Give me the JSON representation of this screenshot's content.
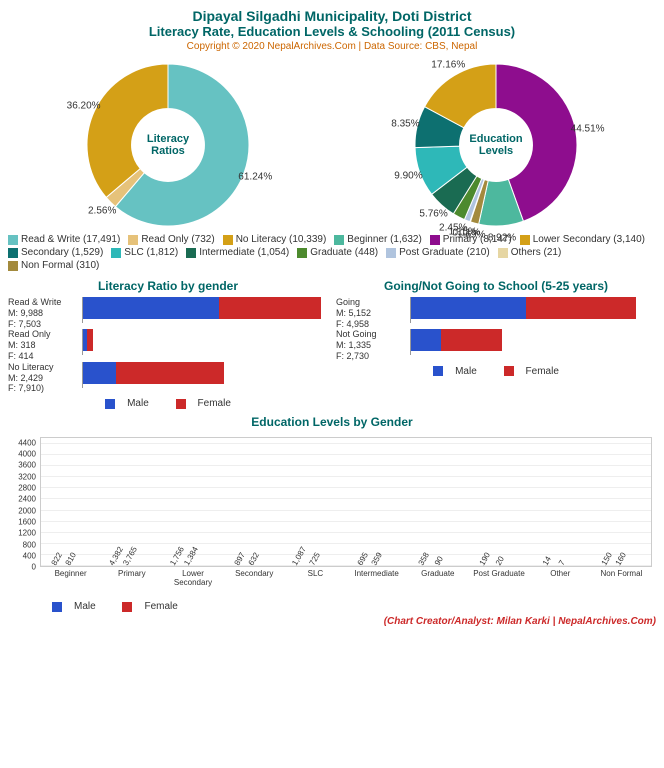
{
  "header": {
    "title1": "Dipayal Silgadhi Municipality, Doti District",
    "title2": "Literacy Rate, Education Levels & Schooling (2011 Census)",
    "copyright": "Copyright © 2020 NepalArchives.Com | Data Source: CBS, Nepal"
  },
  "colors": {
    "male": "#2952cc",
    "female": "#cc2929",
    "title": "#006666"
  },
  "donut_literacy": {
    "center_label": "Literacy\nRatios",
    "slices": [
      {
        "label": "Read & Write",
        "count": 17491,
        "pct": 61.24,
        "color": "#66c2c2"
      },
      {
        "label": "Read Only",
        "count": 732,
        "pct": 2.56,
        "color": "#e6c27a"
      },
      {
        "label": "No Literacy",
        "count": 10339,
        "pct": 36.2,
        "color": "#d4a017"
      }
    ],
    "size": 170,
    "inner_radius_ratio": 0.45
  },
  "donut_edu": {
    "center_label": "Education\nLevels",
    "slices": [
      {
        "label": "Primary",
        "count": 8147,
        "pct": 44.51,
        "color": "#8e0d8e"
      },
      {
        "label": "Beginner",
        "count": 1632,
        "pct": 8.92,
        "color": "#4db89e"
      },
      {
        "label": "Non Formal",
        "count": 310,
        "pct": 1.69,
        "color": "#a38a3d"
      },
      {
        "label": "Others",
        "count": 21,
        "pct": 0.11,
        "color": "#e6d6a3"
      },
      {
        "label": "Post Graduate",
        "count": 210,
        "pct": 1.15,
        "color": "#b0c4de"
      },
      {
        "label": "Graduate",
        "count": 448,
        "pct": 2.45,
        "color": "#4d8a2e"
      },
      {
        "label": "Intermediate",
        "count": 1054,
        "pct": 5.76,
        "color": "#1a6b52"
      },
      {
        "label": "SLC",
        "count": 1812,
        "pct": 9.9,
        "color": "#2eb8b8"
      },
      {
        "label": "Secondary",
        "count": 1529,
        "pct": 8.35,
        "color": "#0d7070"
      },
      {
        "label": "Lower Secondary",
        "count": 3140,
        "pct": 17.16,
        "color": "#d4a017"
      }
    ],
    "size": 170,
    "inner_radius_ratio": 0.45
  },
  "legend_combined": [
    {
      "label": "Read & Write (17,491)",
      "color": "#66c2c2"
    },
    {
      "label": "Read Only (732)",
      "color": "#e6c27a"
    },
    {
      "label": "No Literacy (10,339)",
      "color": "#d4a017"
    },
    {
      "label": "Beginner (1,632)",
      "color": "#4db89e"
    },
    {
      "label": "Primary (8,147)",
      "color": "#8e0d8e"
    },
    {
      "label": "Lower Secondary (3,140)",
      "color": "#d4a017"
    },
    {
      "label": "Secondary (1,529)",
      "color": "#0d7070"
    },
    {
      "label": "SLC (1,812)",
      "color": "#2eb8b8"
    },
    {
      "label": "Intermediate (1,054)",
      "color": "#1a6b52"
    },
    {
      "label": "Graduate (448)",
      "color": "#4d8a2e"
    },
    {
      "label": "Post Graduate (210)",
      "color": "#b0c4de"
    },
    {
      "label": "Others (21)",
      "color": "#e6d6a3"
    },
    {
      "label": "Non Formal (310)",
      "color": "#a38a3d"
    }
  ],
  "hbar_literacy": {
    "title": "Literacy Ratio by gender",
    "max": 18000,
    "rows": [
      {
        "name": "Read & Write",
        "m": 9988,
        "f": 7503
      },
      {
        "name": "Read Only",
        "m": 318,
        "f": 414
      },
      {
        "name": "No Literacy",
        "m": 2429,
        "f": 7910
      }
    ]
  },
  "hbar_school": {
    "title": "Going/Not Going to School (5-25 years)",
    "max": 11000,
    "rows": [
      {
        "name": "Going",
        "m": 5152,
        "f": 4958
      },
      {
        "name": "Not Going",
        "m": 1335,
        "f": 2730
      }
    ]
  },
  "gender_legend": {
    "male": "Male",
    "female": "Female"
  },
  "vbar_edu": {
    "title": "Education Levels by Gender",
    "ymax": 4600,
    "ytick_step": 400,
    "categories": [
      "Beginner",
      "Primary",
      "Lower Secondary",
      "Secondary",
      "SLC",
      "Intermediate",
      "Graduate",
      "Post Graduate",
      "Other",
      "Non Formal"
    ],
    "male": [
      822,
      4382,
      1756,
      897,
      1087,
      695,
      358,
      190,
      14,
      150
    ],
    "female": [
      810,
      3765,
      1384,
      632,
      725,
      359,
      90,
      20,
      7,
      160
    ]
  },
  "footer": "(Chart Creator/Analyst: Milan Karki | NepalArchives.Com)"
}
